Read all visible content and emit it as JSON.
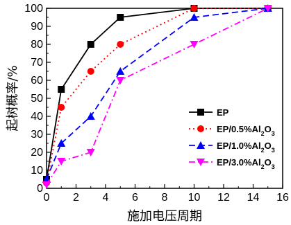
{
  "chart_data": {
    "type": "line",
    "xlabel": "施加电压周期",
    "ylabel": "起树概率/%",
    "xlim": [
      0,
      16
    ],
    "ylim": [
      0,
      100
    ],
    "xticks": [
      0,
      2,
      4,
      6,
      8,
      10,
      12,
      14,
      16
    ],
    "yticks": [
      0,
      10,
      20,
      30,
      40,
      50,
      60,
      70,
      80,
      90,
      100
    ],
    "reference_line": {
      "y": 100,
      "style": "dashed"
    },
    "grid": false,
    "legend_position": "lower-right",
    "series": [
      {
        "name": "EP",
        "name_sub": "",
        "color": "#000000",
        "marker": "square",
        "dash": "solid",
        "x": [
          0,
          1,
          3,
          5,
          10,
          15
        ],
        "y": [
          5,
          55,
          80,
          95,
          100,
          100
        ]
      },
      {
        "name": "EP/0.5%Al",
        "name_sub": "2",
        "name_suffix": "O",
        "name_sub2": "3",
        "color": "#ff0000",
        "marker": "circle",
        "dash": "dot",
        "x": [
          0,
          1,
          3,
          5,
          10,
          15
        ],
        "y": [
          3,
          45,
          65,
          80,
          100,
          100
        ]
      },
      {
        "name": "EP/1.0%Al",
        "name_sub": "2",
        "name_suffix": "O",
        "name_sub2": "3",
        "color": "#0000ff",
        "marker": "triangle-up",
        "dash": "dash",
        "x": [
          0,
          1,
          3,
          5,
          10,
          15
        ],
        "y": [
          5,
          25,
          40,
          65,
          95,
          100
        ]
      },
      {
        "name": "EP/3.0%Al",
        "name_sub": "2",
        "name_suffix": "O",
        "name_sub2": "3",
        "color": "#ff00ff",
        "marker": "triangle-down",
        "dash": "dashdot",
        "x": [
          0,
          1,
          3,
          5,
          10,
          15
        ],
        "y": [
          2,
          15,
          20,
          60,
          80,
          100
        ]
      }
    ]
  }
}
